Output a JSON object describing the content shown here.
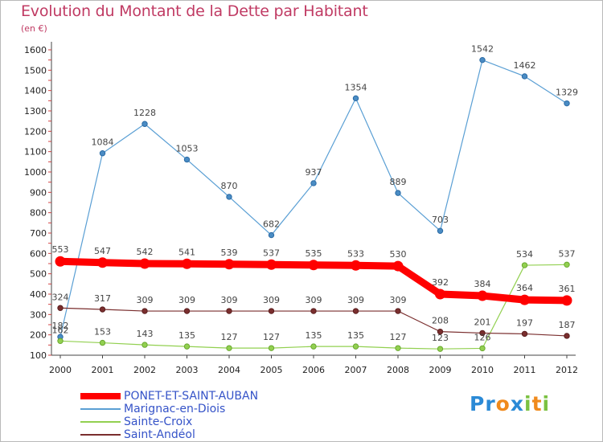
{
  "title": "Evolution du Montant de la Dette par Habitant",
  "subtitle": "(en €)",
  "logo": {
    "text": "Proxiti",
    "colors": [
      "#2b8ad6",
      "#f08a1c",
      "#7bc142"
    ]
  },
  "chart_data": {
    "type": "line",
    "title": "Evolution du Montant de la Dette par Habitant",
    "subtitle": "(en €)",
    "xlabel": "",
    "ylabel": "",
    "x": [
      "2000",
      "2001",
      "2002",
      "2003",
      "2004",
      "2005",
      "2006",
      "2007",
      "2008",
      "2009",
      "2010",
      "2011",
      "2012"
    ],
    "ylim": [
      100,
      1600
    ],
    "yticks": [
      100,
      200,
      300,
      400,
      500,
      600,
      700,
      800,
      900,
      1000,
      1100,
      1200,
      1300,
      1400,
      1500,
      1600
    ],
    "grid": false,
    "legend_position": "bottom-left",
    "series": [
      {
        "name": "PONET-ET-SAINT-AUBAN",
        "color": "#ff0000",
        "values": [
          553,
          547,
          542,
          541,
          539,
          537,
          535,
          533,
          530,
          392,
          384,
          364,
          361
        ]
      },
      {
        "name": "Marignac-en-Diois",
        "color": "#5a9fd4",
        "values": [
          182,
          1084,
          1228,
          1053,
          870,
          682,
          937,
          1354,
          889,
          703,
          1542,
          1462,
          1329
        ]
      },
      {
        "name": "Sainte-Croix",
        "color": "#92d050",
        "values": [
          162,
          153,
          143,
          135,
          127,
          127,
          135,
          135,
          127,
          123,
          126,
          534,
          537
        ]
      },
      {
        "name": "Saint-Andéol",
        "color": "#7a2e2e",
        "values": [
          324,
          317,
          309,
          309,
          309,
          309,
          309,
          309,
          309,
          208,
          201,
          197,
          187
        ]
      }
    ]
  }
}
